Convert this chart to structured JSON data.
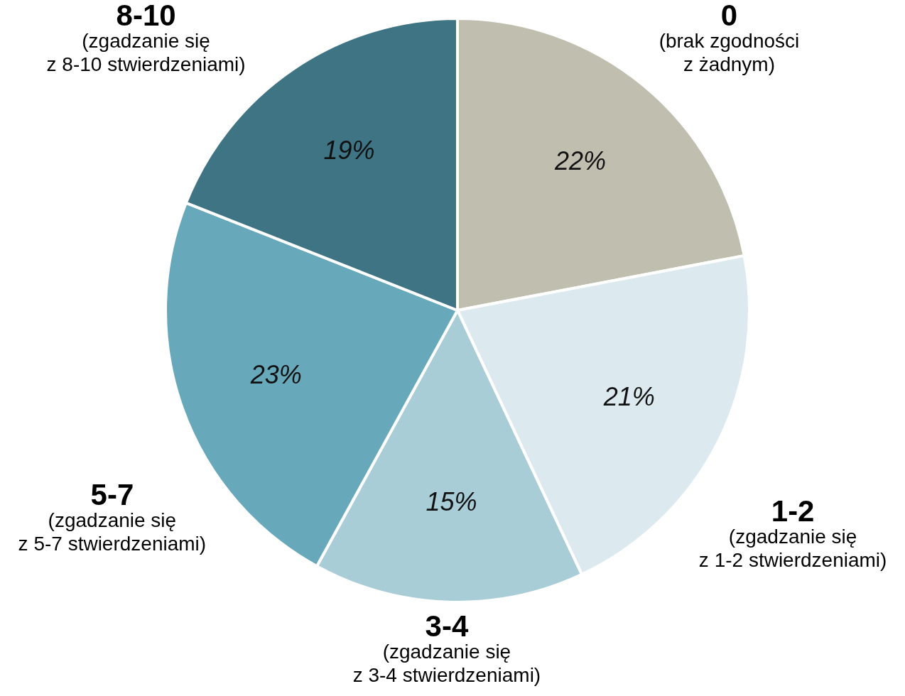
{
  "chart_data": {
    "type": "pie",
    "categories": [
      "0",
      "1-2",
      "3-4",
      "5-7",
      "8-10"
    ],
    "values": [
      22,
      21,
      15,
      23,
      19
    ],
    "value_labels": [
      "22%",
      "21%",
      "15%",
      "23%",
      "19%"
    ],
    "colors": [
      "#c0bfaf",
      "#dceaf0",
      "#a9cdd7",
      "#67a8ba",
      "#3e7483"
    ],
    "annotations": [
      {
        "text": "(brak zgodności z żadnym)",
        "x": "0"
      },
      {
        "text": "(zgadzanie się z 1-2 stwierdzeniami)",
        "x": "1-2"
      },
      {
        "text": "(zgadzanie się z 3-4 stwierdzeniami)",
        "x": "3-4"
      },
      {
        "text": "(zgadzanie się z 5-7 stwierdzeniami)",
        "x": "5-7"
      },
      {
        "text": "(zgadzanie się z 8-10 stwierdzeniami)",
        "x": "8-10"
      }
    ]
  }
}
